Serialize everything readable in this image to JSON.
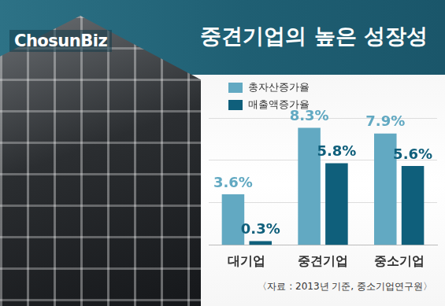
{
  "chart_data": {
    "type": "bar",
    "title": "중견기업의 높은 성장성",
    "logo": "ChosunBiz",
    "source": "〈자료 : 2013년 기준, 중소기업연구원〉",
    "categories": [
      "대기업",
      "중견기업",
      "중소기업"
    ],
    "series": [
      {
        "name": "총자산증가율",
        "color": "#62a9c2",
        "values": [
          3.6,
          8.3,
          7.9
        ],
        "value_labels": [
          "3.6%",
          "8.3%",
          "7.9%"
        ]
      },
      {
        "name": "매출액증가율",
        "color": "#0f5f7b",
        "values": [
          0.3,
          5.8,
          5.6
        ],
        "value_labels": [
          "0.3%",
          "5.8%",
          "5.6%"
        ]
      }
    ],
    "ylim": [
      0,
      9
    ],
    "yticks": [
      0,
      3,
      6,
      9
    ],
    "grid": true,
    "legend": "upper left",
    "data_labels": true,
    "tick_labels": "x"
  }
}
